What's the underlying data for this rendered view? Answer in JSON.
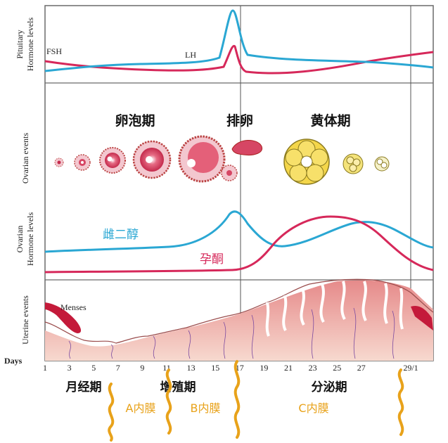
{
  "panels": {
    "pituitary_label_line1": "Pituitary",
    "pituitary_label_line2": "Hormone levels",
    "ovarian_events_label": "Ovarian events",
    "ovarian_hormone_label_line1": "Ovarian",
    "ovarian_hormone_label_line2": "Hormone levels",
    "uterine_events_label": "Uterine events"
  },
  "pituitary": {
    "fsh_label": "FSH",
    "lh_label": "LH",
    "fsh_color": "#d6285a",
    "lh_color": "#2aa7d3"
  },
  "ovarian_phases": {
    "follicular": "卵泡期",
    "ovulation": "排卵",
    "luteal": "黄体期"
  },
  "ovarian_hormones": {
    "estradiol_label": "雌二醇",
    "progesterone_label": "孕酮",
    "estradiol_color": "#2aa7d3",
    "progesterone_color": "#d6285a"
  },
  "uterine": {
    "menses_label": "Menses"
  },
  "days": {
    "label": "Days",
    "ticks": [
      "1",
      "3",
      "5",
      "7",
      "9",
      "11",
      "13",
      "15",
      "17",
      "19",
      "21",
      "23",
      "25",
      "27",
      "29/1"
    ]
  },
  "uterine_phases": {
    "menstrual": "月经期",
    "proliferative": "增殖期",
    "secretory": "分泌期"
  },
  "endometrium_labels": {
    "a": "A内膜",
    "b": "B内膜",
    "c": "C内膜",
    "color": "#e8a21a"
  }
}
